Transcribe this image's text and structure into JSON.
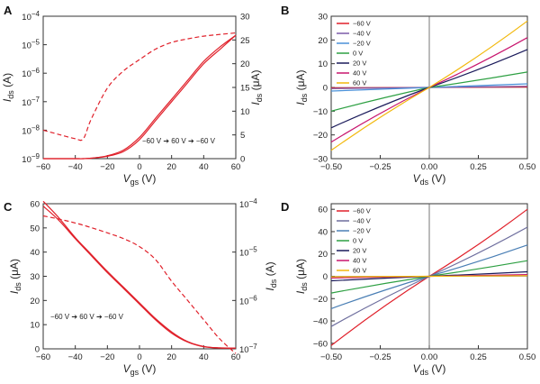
{
  "chart_data": [
    {
      "panel": "A",
      "type": "line",
      "x": [
        -60,
        -50,
        -40,
        -35,
        -30,
        -20,
        -10,
        0,
        10,
        20,
        30,
        40,
        50,
        60
      ],
      "xlim": [
        -60,
        60
      ],
      "xticks": [
        "−60",
        "−40",
        "−20",
        "0",
        "20",
        "40",
        "60"
      ],
      "xlabel": "V",
      "xlabel_sub": "gs",
      "xlabel_unit": " (V)",
      "left_axis": {
        "label": "I",
        "label_sub": "ds",
        "label_unit": " (A)",
        "scale": "log",
        "ylim": [
          1e-09,
          0.0001
        ],
        "ticks": [
          {
            "base": "10",
            "exp": "−9"
          },
          {
            "base": "10",
            "exp": "−8"
          },
          {
            "base": "10",
            "exp": "−7"
          },
          {
            "base": "10",
            "exp": "−6"
          },
          {
            "base": "10",
            "exp": "−5"
          },
          {
            "base": "10",
            "exp": "−4"
          }
        ]
      },
      "right_axis": {
        "label": "I",
        "label_sub": "ds",
        "label_unit": " (μA)",
        "scale": "linear",
        "ylim": [
          0,
          30
        ],
        "ticks": [
          "0",
          "5",
          "10",
          "15",
          "20",
          "25",
          "30"
        ]
      },
      "series": [
        {
          "axis": "left",
          "style": "dashed",
          "values": [
            1e-08,
            7e-09,
            5e-09,
            5e-09,
            2.5e-08,
            3e-07,
            1.2e-06,
            3e-06,
            7e-06,
            1.2e-05,
            1.6e-05,
            2e-05,
            2.3e-05,
            2.6e-05
          ]
        },
        {
          "axis": "right",
          "style": "solid",
          "values": [
            0,
            0,
            0,
            0,
            0.1,
            0.5,
            1.5,
            4,
            8,
            12,
            16,
            20,
            23,
            26
          ]
        },
        {
          "axis": "right",
          "style": "solid",
          "values": [
            0,
            0,
            0,
            0,
            0.1,
            0.6,
            1.8,
            4.5,
            8.5,
            12.5,
            16.5,
            20.5,
            23.5,
            26
          ]
        }
      ],
      "annotation": "−60 V ➔ 60 V ➔ −60 V"
    },
    {
      "panel": "B",
      "type": "line",
      "xlim": [
        -0.5,
        0.5
      ],
      "xticks": [
        "−0.50",
        "−0.25",
        "0.00",
        "0.25",
        "0.50"
      ],
      "xlabel": "V",
      "xlabel_sub": "ds",
      "xlabel_unit": " (V)",
      "ylabel": "I",
      "ylabel_sub": "ds",
      "ylabel_unit": " (μA)",
      "ylim": [
        -30,
        30
      ],
      "yticks": [
        "−30",
        "−20",
        "−10",
        "0",
        "10",
        "20",
        "30"
      ],
      "legend": "top-left",
      "series": [
        {
          "name": "−60 V",
          "color": "#e0202a",
          "x": [
            -0.5,
            0.5
          ],
          "y": [
            -0.2,
            0.2
          ]
        },
        {
          "name": "−40 V",
          "color": "#7a5aa8",
          "x": [
            -0.5,
            0.5
          ],
          "y": [
            -0.5,
            0.5
          ]
        },
        {
          "name": "−20 V",
          "color": "#4a90d9",
          "x": [
            -0.5,
            0.5
          ],
          "y": [
            -1.5,
            1.5
          ]
        },
        {
          "name": "0 V",
          "color": "#2ea043",
          "x": [
            -0.5,
            0.5
          ],
          "y": [
            -10,
            6.5
          ]
        },
        {
          "name": "20 V",
          "color": "#1a1a5a",
          "x": [
            -0.5,
            0.5
          ],
          "y": [
            -17,
            16
          ]
        },
        {
          "name": "40 V",
          "color": "#c8166e",
          "x": [
            -0.5,
            0.5
          ],
          "y": [
            -23,
            21
          ]
        },
        {
          "name": "60 V",
          "color": "#f2b80c",
          "x": [
            -0.5,
            0.5
          ],
          "y": [
            -26.5,
            28
          ]
        }
      ]
    },
    {
      "panel": "C",
      "type": "line",
      "x": [
        -60,
        -50,
        -40,
        -30,
        -20,
        -10,
        0,
        10,
        20,
        30,
        40,
        50,
        60
      ],
      "xlim": [
        -60,
        60
      ],
      "xticks": [
        "−60",
        "−40",
        "−20",
        "0",
        "20",
        "40",
        "60"
      ],
      "xlabel": "V",
      "xlabel_sub": "gs",
      "xlabel_unit": " (V)",
      "left_axis": {
        "label": "I",
        "label_sub": "ds",
        "label_unit": " (μA)",
        "scale": "linear",
        "ylim": [
          0,
          60
        ],
        "ticks": [
          "0",
          "10",
          "20",
          "30",
          "40",
          "50",
          "60"
        ]
      },
      "right_axis": {
        "label": "I",
        "label_sub": "ds",
        "label_unit": " (A)",
        "scale": "log",
        "ylim": [
          1e-07,
          0.0001
        ],
        "ticks": [
          {
            "base": "10",
            "exp": "−7"
          },
          {
            "base": "10",
            "exp": "−6"
          },
          {
            "base": "10",
            "exp": "−5"
          },
          {
            "base": "10",
            "exp": "−4"
          }
        ]
      },
      "series": [
        {
          "axis": "left",
          "style": "solid",
          "values": [
            61,
            54,
            46,
            39,
            32,
            25.5,
            19,
            12.5,
            7,
            3,
            1,
            0.4,
            0.3
          ]
        },
        {
          "axis": "left",
          "style": "solid",
          "values": [
            59,
            53,
            45.5,
            38.5,
            31.5,
            25,
            18.5,
            12,
            6.5,
            2.8,
            0.9,
            0.35,
            0.3
          ]
        },
        {
          "axis": "right",
          "style": "dashed",
          "values": [
            5.6e-05,
            4.8e-05,
            4e-05,
            3.2e-05,
            2.5e-05,
            1.9e-05,
            1.3e-05,
            7e-06,
            2.5e-06,
            1e-06,
            4e-07,
            1.6e-07,
            8e-08
          ]
        }
      ],
      "annotation": "−60 V ➔ 60 V ➔ −60 V"
    },
    {
      "panel": "D",
      "type": "line",
      "xlim": [
        -0.5,
        0.5
      ],
      "xticks": [
        "−0.50",
        "−0.25",
        "0.00",
        "0.25",
        "0.50"
      ],
      "xlabel": "V",
      "xlabel_sub": "ds",
      "xlabel_unit": " (V)",
      "ylabel": "I",
      "ylabel_sub": "ds",
      "ylabel_unit": " (μA)",
      "ylim": [
        -65,
        65
      ],
      "yticks": [
        "−60",
        "−40",
        "−20",
        "0",
        "20",
        "40",
        "60"
      ],
      "legend": "top-left",
      "series": [
        {
          "name": "−60 V",
          "color": "#e0202a",
          "x": [
            -0.5,
            0.5
          ],
          "y": [
            -62,
            60
          ]
        },
        {
          "name": "−40 V",
          "color": "#6e6e9e",
          "x": [
            -0.5,
            0.5
          ],
          "y": [
            -45,
            44
          ]
        },
        {
          "name": "−20 V",
          "color": "#4a7fb5",
          "x": [
            -0.5,
            0.5
          ],
          "y": [
            -29,
            28
          ]
        },
        {
          "name": "0 V",
          "color": "#2ea043",
          "x": [
            -0.5,
            0.5
          ],
          "y": [
            -15,
            14
          ]
        },
        {
          "name": "20 V",
          "color": "#1a1a5a",
          "x": [
            -0.5,
            0.5
          ],
          "y": [
            -4,
            4
          ]
        },
        {
          "name": "40 V",
          "color": "#c8166e",
          "x": [
            -0.5,
            0.5
          ],
          "y": [
            -1.5,
            1.5
          ]
        },
        {
          "name": "60 V",
          "color": "#f2b80c",
          "x": [
            -0.5,
            0.5
          ],
          "y": [
            -0.5,
            0.5
          ]
        }
      ]
    }
  ]
}
